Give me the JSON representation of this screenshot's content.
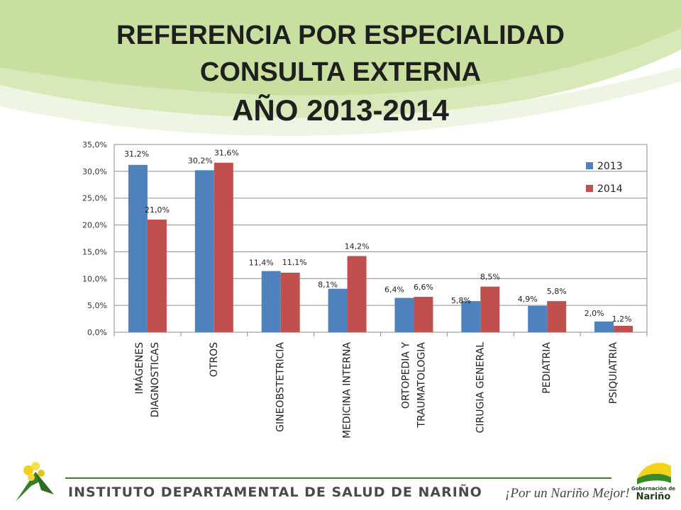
{
  "title": {
    "line1": "REFERENCIA POR ESPECIALIDAD",
    "line2": "CONSULTA EXTERNA",
    "line3": "AÑO 2013-2014"
  },
  "footer": {
    "institute": "INSTITUTO DEPARTAMENTAL DE SALUD DE NARIÑO",
    "slogan": "¡Por un Nariño Mejor!",
    "gov_small": "Gobernación de",
    "gov_name": "Nariño"
  },
  "colors": {
    "series_2013": "#4f81bd",
    "series_2014": "#c0504d",
    "header_green": "#c9dfa0",
    "footer_green": "#3a7d2c"
  },
  "chart_data": {
    "type": "bar",
    "categories": [
      [
        "IMÁGENES",
        "DIAGNOSTICAS"
      ],
      [
        "OTROS"
      ],
      [
        "GINEOBSTETRICIA"
      ],
      [
        "MEDICINA INTERNA"
      ],
      [
        "ORTOPEDIA Y",
        "TRAUMATOLOGIA"
      ],
      [
        "CIRUGIA GENERAL"
      ],
      [
        "PEDIATRIA"
      ],
      [
        "PSIQUIATRIA"
      ]
    ],
    "series": [
      {
        "name": "2013",
        "values": [
          31.2,
          30.2,
          11.4,
          8.1,
          6.4,
          5.8,
          4.9,
          2.0
        ],
        "labels": [
          "31,2%",
          "30,2%",
          "11,4%",
          "8,1%",
          "6,4%",
          "5,8%",
          "4,9%",
          "2,0%"
        ]
      },
      {
        "name": "2014",
        "values": [
          21.0,
          31.6,
          11.1,
          14.2,
          6.6,
          8.5,
          5.8,
          1.2
        ],
        "labels": [
          "21,0%",
          "31,6%",
          "11,1%",
          "14,2%",
          "6,6%",
          "8,5%",
          "5,8%",
          "1,2%"
        ]
      }
    ],
    "yticks": [
      "0,0%",
      "5,0%",
      "10,0%",
      "15,0%",
      "20,0%",
      "25,0%",
      "30,0%",
      "35,0%"
    ],
    "ylim": [
      0,
      35
    ],
    "grid": true,
    "legend_position": "right"
  }
}
